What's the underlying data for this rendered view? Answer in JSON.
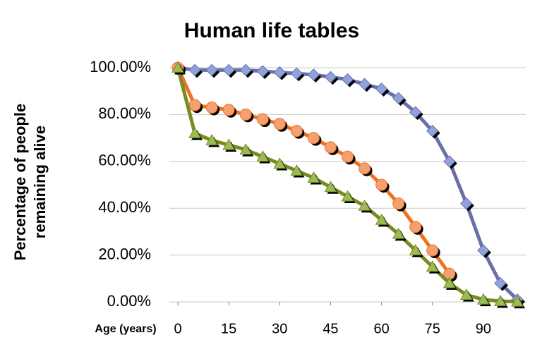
{
  "chart_data": {
    "type": "line",
    "title": "Human life tables",
    "x_label": "Age (years)",
    "y_label": "Percentage of people remaining alive",
    "x": [
      0,
      5,
      10,
      15,
      20,
      25,
      30,
      35,
      40,
      45,
      50,
      55,
      60,
      65,
      70,
      75,
      80,
      85,
      90,
      95,
      100
    ],
    "xlim": [
      -2.5,
      102.5
    ],
    "xticks": [
      0,
      15,
      30,
      45,
      60,
      75,
      90
    ],
    "ylim": [
      0,
      100
    ],
    "yticks": [
      {
        "value": 0,
        "label": "0.00%"
      },
      {
        "value": 20,
        "label": "20.00%"
      },
      {
        "value": 40,
        "label": "40.00%"
      },
      {
        "value": 60,
        "label": "60.00%"
      },
      {
        "value": 80,
        "label": "80.00%"
      },
      {
        "value": 100,
        "label": "100.00%"
      }
    ],
    "grid": true,
    "series": [
      {
        "color": "#6b6ea8",
        "marker_color": "#8fa2dc",
        "marker": "diamond",
        "values": [
          100,
          99,
          99,
          99,
          99,
          98.5,
          98,
          97.5,
          97,
          96,
          95,
          93,
          91,
          87,
          81,
          73,
          60,
          42,
          22,
          8,
          1
        ]
      },
      {
        "color": "#f07020",
        "marker_color": "#f5a070",
        "marker": "circle",
        "values": [
          100,
          84,
          83,
          82,
          80,
          78,
          76,
          73,
          70,
          66,
          62,
          57,
          50,
          42,
          32,
          22,
          12,
          null,
          null,
          null,
          null
        ]
      },
      {
        "color": "#7a8a20",
        "marker_color": "#9bbb59",
        "marker": "triangle",
        "values": [
          100,
          72,
          69,
          67,
          65,
          62,
          59,
          56,
          53,
          49,
          45,
          41,
          35,
          29,
          22,
          15,
          8,
          3,
          1,
          0.3,
          0.1
        ]
      }
    ]
  }
}
